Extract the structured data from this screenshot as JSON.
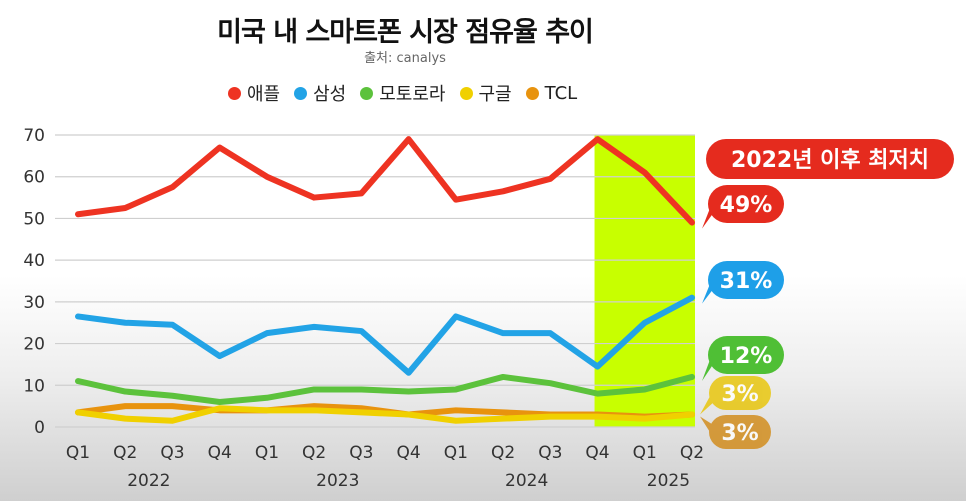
{
  "title": "미국 내 스마트폰 시장 점유율 추이",
  "source": "출처: canalys",
  "chart_data": {
    "type": "line",
    "categories": [
      "Q1",
      "Q2",
      "Q3",
      "Q4",
      "Q1",
      "Q2",
      "Q3",
      "Q4",
      "Q1",
      "Q2",
      "Q3",
      "Q4",
      "Q1",
      "Q2"
    ],
    "years": [
      {
        "label": "2022",
        "start": 0,
        "end": 3
      },
      {
        "label": "2023",
        "start": 4,
        "end": 7
      },
      {
        "label": "2024",
        "start": 8,
        "end": 11
      },
      {
        "label": "2025",
        "start": 12,
        "end": 13
      }
    ],
    "ylim": [
      0,
      70
    ],
    "yticks": [
      0,
      10,
      20,
      30,
      40,
      50,
      60,
      70
    ],
    "grid": true,
    "legend_position": "top",
    "highlight_range": [
      11,
      13
    ],
    "highlight_color": "#c8ff00",
    "series": [
      {
        "name": "애플",
        "color": "#ee3322",
        "values": [
          51,
          52.5,
          57.5,
          67,
          60,
          55,
          56,
          69,
          54.5,
          56.5,
          59.5,
          69,
          61,
          49
        ]
      },
      {
        "name": "삼성",
        "color": "#22a3e6",
        "values": [
          26.5,
          25,
          24.5,
          17,
          22.5,
          24,
          23,
          13,
          26.5,
          22.5,
          22.5,
          14.5,
          25,
          31
        ]
      },
      {
        "name": "모토로라",
        "color": "#5cc23c",
        "values": [
          11,
          8.5,
          7.5,
          6,
          7,
          9,
          9,
          8.5,
          9,
          12,
          10.5,
          8,
          9,
          12
        ]
      },
      {
        "name": "구글",
        "color": "#f0d000",
        "values": [
          3.5,
          2,
          1.5,
          4.5,
          4,
          4,
          3.5,
          3,
          1.5,
          2,
          2.5,
          2.5,
          2,
          3
        ]
      },
      {
        "name": "TCL",
        "color": "#e8930e",
        "values": [
          3.5,
          5,
          5,
          4,
          4,
          5,
          4.5,
          3,
          4,
          3.5,
          3,
          3,
          2.5,
          3
        ]
      }
    ],
    "annotations": [
      {
        "text": "2022년 이후 최저치",
        "series": 0,
        "color": "#e52b1e"
      },
      {
        "text": "49%",
        "series": 0,
        "color": "#e52b1e"
      },
      {
        "text": "31%",
        "series": 1,
        "color": "#1e9fe8"
      },
      {
        "text": "12%",
        "series": 2,
        "color": "#4fbf35"
      },
      {
        "text": "3%",
        "series": 3,
        "color": "#e8c400"
      },
      {
        "text": "3%",
        "series": 4,
        "color": "#d18812"
      }
    ]
  }
}
